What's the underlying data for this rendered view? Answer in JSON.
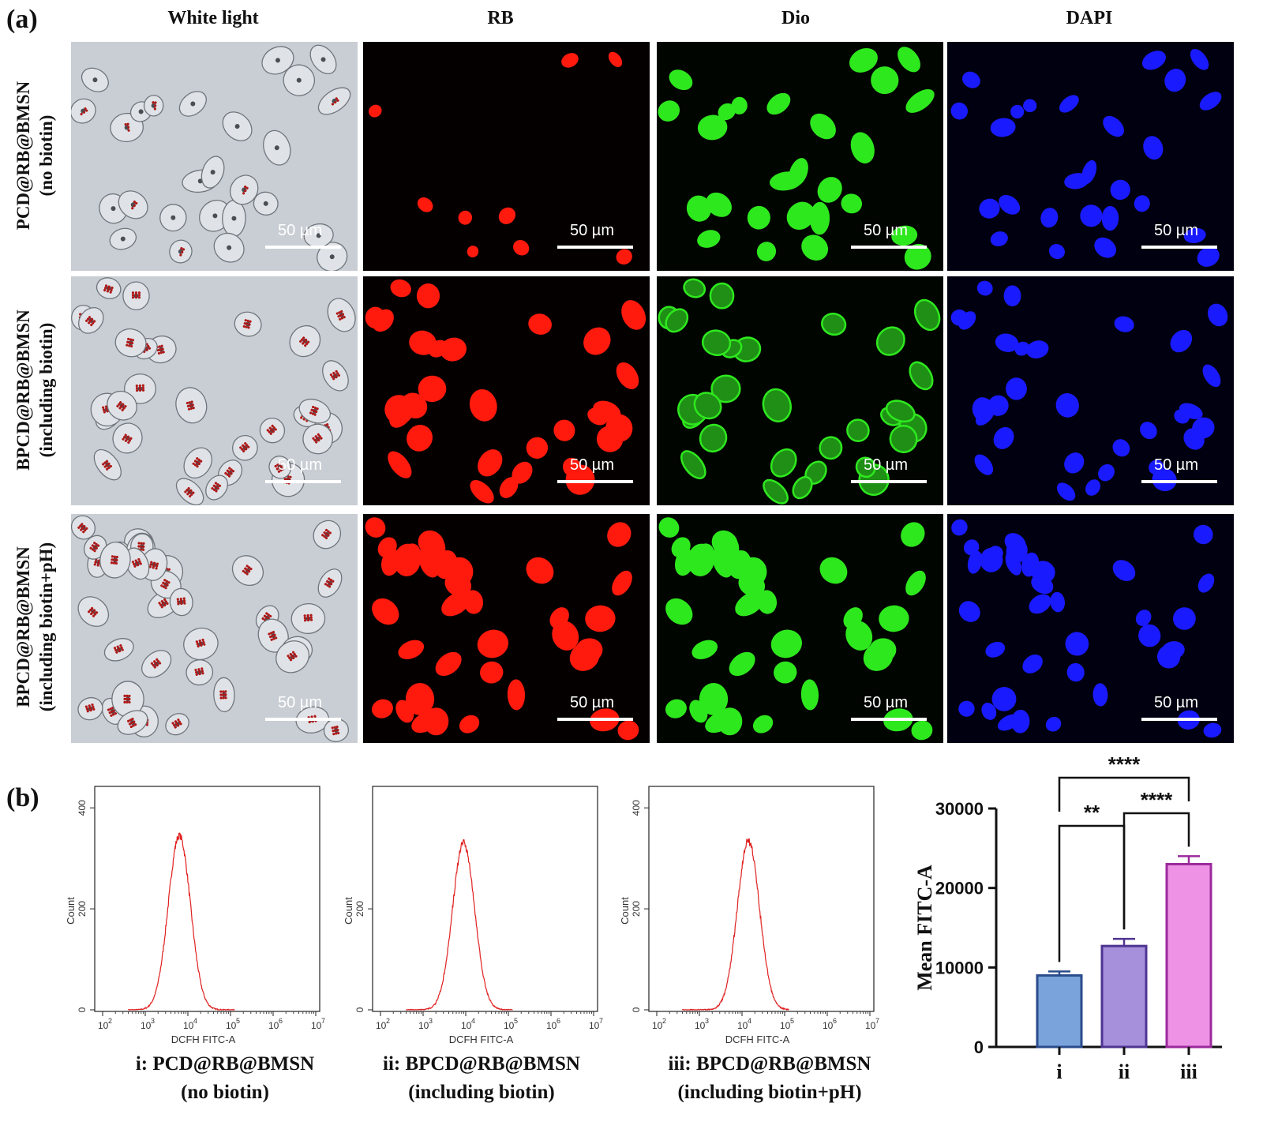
{
  "panel_a": {
    "letter": "(a)",
    "columns": [
      "White light",
      "RB",
      "Dio",
      "DAPI"
    ],
    "rows": [
      {
        "line1": "PCD@RB@BMSN",
        "line2": "(no biotin)"
      },
      {
        "line1": "BPCD@RB@BMSN",
        "line2": "(including biotin)"
      },
      {
        "line1": "BPCD@RB@BMSN",
        "line2": "(including biotin+pH)"
      }
    ],
    "scale_bar": "50 µm",
    "channel_colors": {
      "white_light": "#c8cdd3",
      "rb": "#ff1a0d",
      "dio": "#2ee81e",
      "dapi": "#1a1aff"
    }
  },
  "panel_b": {
    "letter": "(b)",
    "histograms": [
      {
        "caption1": "i: PCD@RB@BMSN",
        "caption2": "(no biotin)",
        "xlabel": "DCFH FITC-A",
        "ylabel": "Count",
        "yticks": [
          "0",
          "200",
          "400"
        ],
        "xticks": [
          "10",
          "10",
          "10",
          "10",
          "10",
          "10"
        ],
        "xexp": [
          "2",
          "3",
          "4",
          "5",
          "6",
          "7"
        ],
        "peak_log10": 3.8,
        "peak_count": 345
      },
      {
        "caption1": "ii: BPCD@RB@BMSN",
        "caption2": "(including biotin)",
        "xlabel": "DCFH FITC-A",
        "ylabel": "Count",
        "yticks": [
          "0",
          "200"
        ],
        "xticks": [
          "10",
          "10",
          "10",
          "10",
          "10",
          "10"
        ],
        "xexp": [
          "2",
          "3",
          "4",
          "5",
          "6",
          "7"
        ],
        "peak_log10": 3.95,
        "peak_count": 330
      },
      {
        "caption1": "iii: BPCD@RB@BMSN",
        "caption2": "(including biotin+pH)",
        "xlabel": "DCFH FITC-A",
        "ylabel": "Count",
        "yticks": [
          "0",
          "200",
          "400"
        ],
        "xticks": [
          "10",
          "10",
          "10",
          "10",
          "10",
          "10"
        ],
        "xexp": [
          "2",
          "3",
          "4",
          "5",
          "6",
          "7"
        ],
        "peak_log10": 4.15,
        "peak_count": 335
      }
    ],
    "hist_color": "#e02020"
  },
  "chart_data": {
    "type": "bar",
    "categories": [
      "i",
      "ii",
      "iii"
    ],
    "values": [
      9000,
      12700,
      23000
    ],
    "errors": [
      500,
      900,
      1000
    ],
    "ylabel": "Mean FITC-A",
    "ylim": [
      0,
      30000
    ],
    "yticks": [
      "0",
      "10000",
      "20000",
      "30000"
    ],
    "fill_colors": [
      "#7aa3dc",
      "#a68fdb",
      "#ee92e6"
    ],
    "edge_colors": [
      "#2b4c8c",
      "#4f3592",
      "#9b2a9c"
    ],
    "significance": [
      {
        "pair": [
          "i",
          "ii"
        ],
        "label": "**"
      },
      {
        "pair": [
          "ii",
          "iii"
        ],
        "label": "****"
      },
      {
        "pair": [
          "i",
          "iii"
        ],
        "label": "****"
      }
    ]
  }
}
